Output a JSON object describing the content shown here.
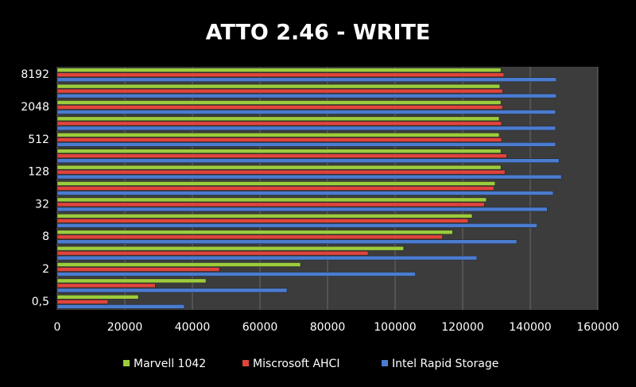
{
  "chart_data": {
    "type": "hbar",
    "title": "ATTO 2.46 - WRITE",
    "categories": [
      "0,5",
      null,
      "2",
      null,
      "8",
      null,
      "32",
      null,
      "128",
      null,
      "512",
      null,
      "2048",
      null,
      "8192"
    ],
    "series": [
      {
        "name": "Marvell 1042",
        "color": "#9ccc3c",
        "values": [
          24000,
          44000,
          72000,
          102500,
          117000,
          122800,
          127000,
          129600,
          131300,
          131300,
          130800,
          130800,
          131300,
          131000,
          131300
        ]
      },
      {
        "name": "Miscrosoft AHCI",
        "color": "#e0443c",
        "values": [
          15000,
          29000,
          48000,
          92000,
          114000,
          121600,
          126400,
          129200,
          132500,
          133000,
          131500,
          131500,
          131800,
          131800,
          132200
        ]
      },
      {
        "name": "Intel Rapid Storage",
        "color": "#4a7cd0",
        "values": [
          37600,
          68000,
          106000,
          124200,
          136000,
          142000,
          145000,
          146800,
          149200,
          148500,
          147500,
          147500,
          147500,
          147700,
          147700
        ]
      }
    ],
    "xlim": [
      0,
      160000
    ],
    "xticks": [
      0,
      20000,
      40000,
      60000,
      80000,
      100000,
      120000,
      140000,
      160000
    ],
    "grid": true,
    "legend": "bottom"
  }
}
